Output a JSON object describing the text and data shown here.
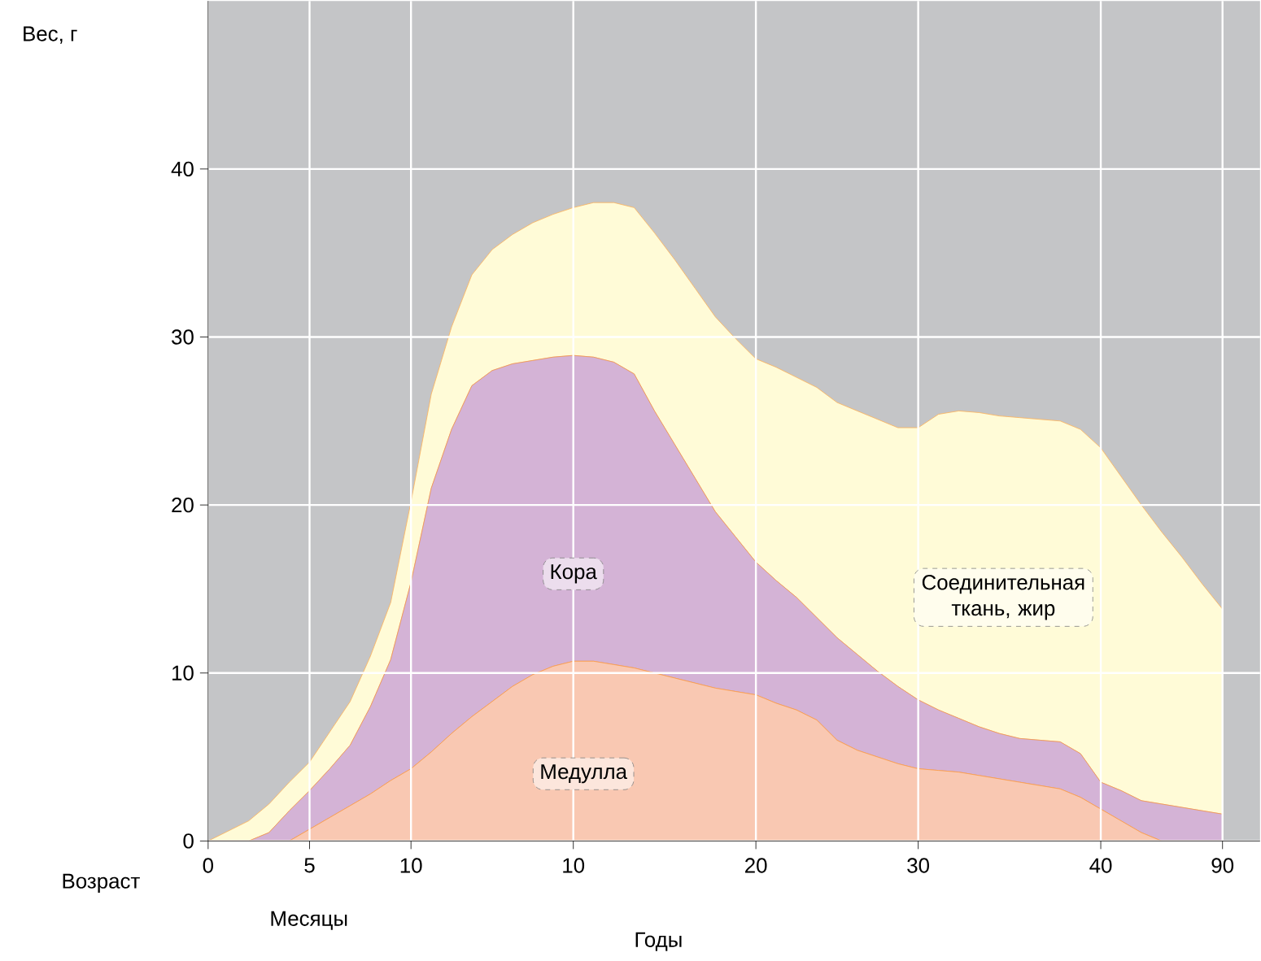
{
  "chart_data": {
    "type": "area",
    "stacked": true,
    "ylabel": "Вес, г",
    "xlabel": "Годы",
    "annotations": [
      "Возраст",
      "Месяцы"
    ],
    "categories": [
      "0",
      null,
      null,
      null,
      null,
      "5",
      null,
      null,
      null,
      null,
      "10",
      null,
      null,
      null,
      null,
      null,
      null,
      null,
      "10",
      null,
      null,
      null,
      null,
      null,
      null,
      null,
      null,
      "20",
      null,
      null,
      null,
      null,
      null,
      null,
      null,
      "30",
      null,
      null,
      null,
      null,
      null,
      null,
      null,
      null,
      "40",
      null,
      null,
      null,
      null,
      null,
      "90"
    ],
    "series": [
      {
        "name": "Медулла",
        "color": "#f9c8b2",
        "values": [
          0,
          0,
          0,
          0,
          0,
          0.7,
          1.4,
          2.1,
          2.8,
          3.6,
          4.3,
          5.3,
          6.4,
          7.4,
          8.3,
          9.2,
          9.9,
          10.4,
          10.7,
          10.7,
          10.5,
          10.3,
          10.0,
          9.7,
          9.4,
          9.1,
          8.9,
          8.7,
          8.2,
          7.8,
          7.2,
          6.0,
          5.4,
          5.0,
          4.6,
          4.3,
          4.2,
          4.1,
          3.9,
          3.7,
          3.5,
          3.3,
          3.1,
          2.6,
          1.9,
          1.2,
          0.5,
          0,
          0,
          0,
          0
        ]
      },
      {
        "name": "Кора",
        "color": "#d4b3d6",
        "values": [
          0,
          0,
          0,
          0.5,
          1.8,
          2.3,
          2.9,
          3.6,
          5.2,
          7.2,
          11.1,
          15.7,
          18.1,
          19.7,
          19.7,
          19.2,
          18.7,
          18.4,
          18.2,
          18.1,
          18.0,
          17.5,
          15.6,
          13.9,
          12.2,
          10.5,
          9.2,
          7.9,
          7.3,
          6.7,
          6.1,
          6.1,
          5.7,
          5.1,
          4.6,
          4.1,
          3.6,
          3.2,
          2.9,
          2.7,
          2.6,
          2.7,
          2.8,
          2.6,
          1.6,
          1.8,
          1.9,
          2.2,
          2.0,
          1.8,
          1.6
        ]
      },
      {
        "name": "Соединительная ткань, жир",
        "color": "#fffbd7",
        "values": [
          0,
          0.6,
          1.2,
          1.7,
          1.7,
          1.7,
          2.2,
          2.6,
          3.0,
          3.4,
          4.8,
          5.6,
          6.1,
          6.6,
          7.2,
          7.7,
          8.2,
          8.5,
          8.8,
          9.2,
          9.5,
          9.9,
          10.6,
          11.0,
          11.3,
          11.6,
          11.8,
          12.1,
          12.7,
          13.1,
          13.7,
          14.0,
          14.5,
          15.0,
          15.4,
          16.2,
          17.6,
          18.3,
          18.7,
          18.9,
          19.1,
          19.1,
          19.1,
          19.3,
          19.9,
          18.7,
          17.6,
          16.2,
          14.9,
          13.5,
          12.2
        ]
      }
    ],
    "ylim": [
      0,
      50
    ],
    "yticks": [
      0,
      10,
      20,
      30,
      40
    ],
    "grid": true
  }
}
